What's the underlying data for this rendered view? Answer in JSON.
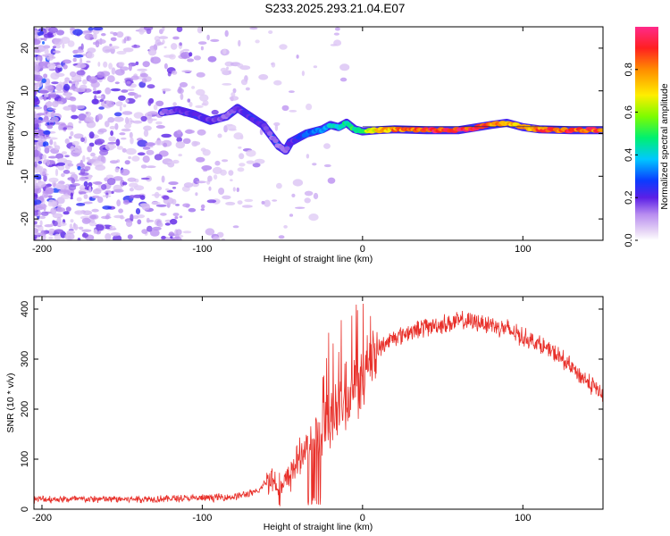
{
  "title": "S233.2025.293.21.04.E07",
  "chart_data": [
    {
      "type": "heatmap",
      "name": "spectrogram",
      "xlabel": "Height of straight line (km)",
      "ylabel": "Frequency (Hz)",
      "xlim": [
        -205,
        150
      ],
      "ylim": [
        -25,
        25
      ],
      "xticks": [
        "-200",
        "-100",
        "0",
        "100"
      ],
      "xtick_values": [
        -200,
        -100,
        0,
        100
      ],
      "yticks": [
        "20",
        "10",
        "0",
        "-10",
        "-20"
      ],
      "ytick_values": [
        20,
        10,
        0,
        -10,
        -20
      ],
      "colorbar": {
        "label": "Normalized spectral amplitude",
        "range": [
          0,
          1
        ],
        "ticks": [
          "0.0",
          "0.2",
          "0.4",
          "0.6",
          "0.8"
        ],
        "tick_values": [
          0.0,
          0.2,
          0.4,
          0.6,
          0.8
        ]
      },
      "ridge": {
        "x": [
          -125,
          -115,
          -105,
          -95,
          -85,
          -78,
          -70,
          -62,
          -56,
          -52,
          -48,
          -45,
          -40,
          -35,
          -30,
          -25,
          -20,
          -15,
          -10,
          -5,
          0,
          10,
          20,
          40,
          60,
          80,
          90,
          100,
          110,
          130,
          150
        ],
        "y": [
          5,
          5.5,
          4.5,
          3,
          4,
          6,
          4,
          2,
          -1,
          -3,
          -4,
          -2,
          -1,
          0,
          0.5,
          1,
          2,
          1.5,
          2.5,
          1,
          0.5,
          0.8,
          1,
          0.8,
          0.8,
          2,
          2.5,
          1.5,
          1,
          0.8,
          0.8
        ],
        "amplitude": [
          0.15,
          0.2,
          0.2,
          0.2,
          0.15,
          0.18,
          0.22,
          0.2,
          0.15,
          0.12,
          0.15,
          0.2,
          0.25,
          0.3,
          0.35,
          0.35,
          0.4,
          0.45,
          0.45,
          0.5,
          0.55,
          0.7,
          0.8,
          0.9,
          0.95,
          0.85,
          0.8,
          0.75,
          0.85,
          0.9,
          0.9
        ]
      }
    },
    {
      "type": "line",
      "name": "snr",
      "xlabel": "Height of straight line (km)",
      "ylabel": "SNR (10 * v/v)",
      "xlim": [
        -205,
        150
      ],
      "ylim": [
        0,
        425
      ],
      "xticks": [
        "-200",
        "-100",
        "0",
        "100"
      ],
      "xtick_values": [
        -200,
        -100,
        0,
        100
      ],
      "yticks": [
        "0",
        "100",
        "200",
        "300",
        "400"
      ],
      "ytick_values": [
        0,
        100,
        200,
        300,
        400
      ],
      "series": [
        {
          "name": "SNR",
          "color": "#e8302a",
          "envelope_x": [
            -205,
            -150,
            -100,
            -80,
            -65,
            -58,
            -50,
            -40,
            -30,
            -20,
            -10,
            0,
            10,
            20,
            30,
            40,
            50,
            60,
            70,
            80,
            90,
            100,
            110,
            120,
            130,
            140,
            150
          ],
          "envelope_y": [
            20,
            20,
            22,
            25,
            35,
            65,
            40,
            100,
            150,
            190,
            230,
            270,
            320,
            345,
            355,
            365,
            370,
            375,
            375,
            370,
            360,
            345,
            330,
            310,
            285,
            255,
            230
          ]
        }
      ]
    }
  ]
}
